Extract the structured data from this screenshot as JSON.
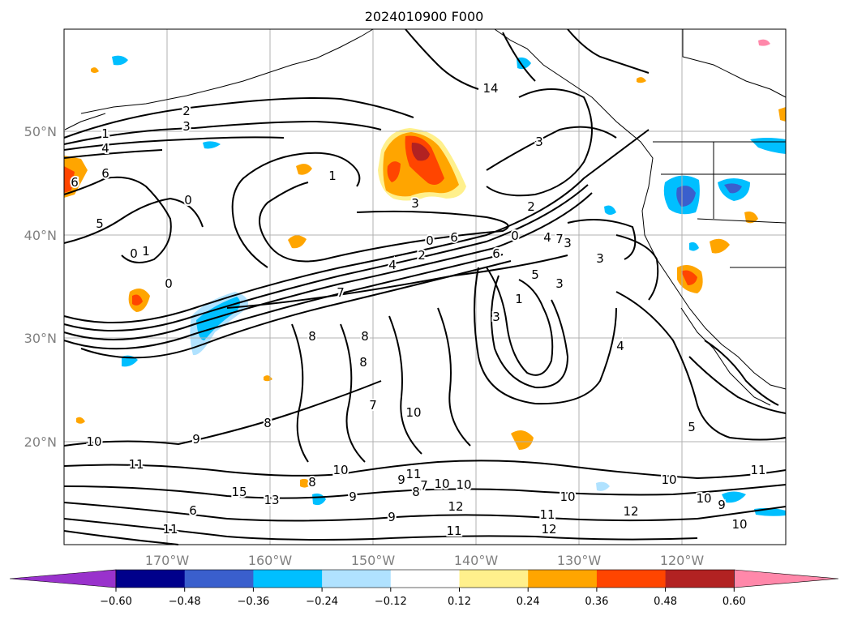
{
  "map": {
    "title": "2024010900 F000",
    "lat_labels": [
      "50°N",
      "40°N",
      "30°N",
      "20°N"
    ],
    "lon_labels": [
      "170°W",
      "160°W",
      "150°W",
      "140°W",
      "130°W",
      "120°W"
    ],
    "colorbar": {
      "ticks": [
        "−0.60",
        "−0.48",
        "−0.36",
        "−0.24",
        "−0.12",
        "0.12",
        "0.24",
        "0.36",
        "0.48",
        "0.60"
      ],
      "colors": [
        "#9932cc",
        "#00008b",
        "#3a5fcd",
        "#00bfff",
        "#b0e2ff",
        "#ffffff",
        "#fff08c",
        "#ffa500",
        "#ff4500",
        "#b22222",
        "#ff88aa"
      ]
    },
    "contour_labels": [
      "2",
      "3",
      "1",
      "4",
      "6",
      "5",
      "0",
      "1",
      "0",
      "6",
      "0",
      "2",
      "4",
      "3",
      "6",
      "0",
      "1",
      "0",
      "2",
      "7",
      "7",
      "6",
      "4",
      "3",
      "3",
      "5",
      "3",
      "1",
      "3",
      "8",
      "8",
      "7",
      "8",
      "10",
      "8",
      "9",
      "10",
      "11",
      "4",
      "5",
      "3",
      "8",
      "9",
      "11",
      "12",
      "11",
      "12",
      "10",
      "9",
      "10",
      "8",
      "7",
      "10",
      "9",
      "10",
      "11",
      "12",
      "10",
      "10",
      "9",
      "10",
      "11",
      "11",
      "13",
      "15",
      "14",
      "6"
    ]
  }
}
